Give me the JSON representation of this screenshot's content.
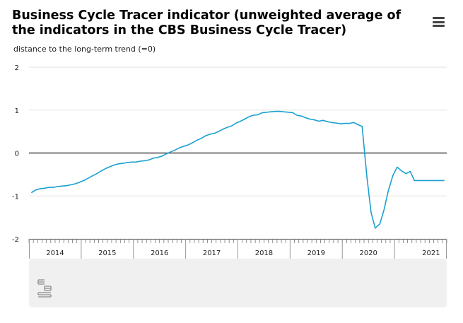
{
  "chart_data": {
    "type": "line",
    "title": "Business Cycle Tracer indicator (unweighted average of the indicators in the CBS Business Cycle Tracer)",
    "ylabel": "distance to the long-term trend (=0)",
    "xlabel": "",
    "ylim": [
      -2,
      2
    ],
    "yticks": [
      2,
      1,
      0,
      -1,
      -2
    ],
    "xlim": [
      2013.5,
      2021.5
    ],
    "year_labels": [
      {
        "label": "2014",
        "x": 2014.0
      },
      {
        "label": "2015",
        "x": 2015.0
      },
      {
        "label": "2016",
        "x": 2016.0
      },
      {
        "label": "2017",
        "x": 2017.0
      },
      {
        "label": "2018",
        "x": 2018.0
      },
      {
        "label": "2019",
        "x": 2019.0
      },
      {
        "label": "2020",
        "x": 2020.0
      },
      {
        "label": "2021",
        "x": 2021.2
      }
    ],
    "year_dividers": [
      2014.5,
      2015.5,
      2016.5,
      2017.5,
      2018.5,
      2019.5,
      2020.5
    ],
    "series": [
      {
        "name": "Business Cycle Tracer indicator",
        "color": "#1aa0d0",
        "x": [
          2013.55,
          2013.63,
          2013.72,
          2013.8,
          2013.88,
          2013.97,
          2014.05,
          2014.13,
          2014.22,
          2014.3,
          2014.38,
          2014.47,
          2014.55,
          2014.63,
          2014.72,
          2014.8,
          2014.88,
          2014.97,
          2015.05,
          2015.13,
          2015.22,
          2015.3,
          2015.38,
          2015.47,
          2015.55,
          2015.63,
          2015.72,
          2015.8,
          2015.88,
          2015.97,
          2016.05,
          2016.13,
          2016.22,
          2016.3,
          2016.38,
          2016.47,
          2016.55,
          2016.63,
          2016.72,
          2016.8,
          2016.88,
          2016.97,
          2017.05,
          2017.13,
          2017.22,
          2017.3,
          2017.38,
          2017.47,
          2017.55,
          2017.63,
          2017.72,
          2017.8,
          2017.88,
          2017.97,
          2018.05,
          2018.13,
          2018.22,
          2018.3,
          2018.38,
          2018.47,
          2018.55,
          2018.63,
          2018.72,
          2018.8,
          2018.88,
          2018.97,
          2019.05,
          2019.13,
          2019.22,
          2019.3,
          2019.38,
          2019.47,
          2019.55,
          2019.63,
          2019.72,
          2019.8,
          2019.88,
          2019.97,
          2020.05,
          2020.13,
          2020.22,
          2020.3,
          2020.38,
          2020.47,
          2020.55,
          2020.63,
          2020.72,
          2020.8,
          2020.88,
          2020.97,
          2021.05,
          2021.13,
          2021.22,
          2021.3,
          2021.38,
          2021.45
        ],
        "values": [
          -0.92,
          -0.86,
          -0.83,
          -0.82,
          -0.8,
          -0.8,
          -0.78,
          -0.77,
          -0.76,
          -0.74,
          -0.72,
          -0.68,
          -0.64,
          -0.59,
          -0.53,
          -0.48,
          -0.42,
          -0.36,
          -0.32,
          -0.28,
          -0.25,
          -0.24,
          -0.22,
          -0.21,
          -0.21,
          -0.19,
          -0.18,
          -0.16,
          -0.12,
          -0.1,
          -0.07,
          -0.02,
          0.03,
          0.07,
          0.12,
          0.16,
          0.19,
          0.24,
          0.3,
          0.34,
          0.4,
          0.44,
          0.46,
          0.5,
          0.56,
          0.6,
          0.63,
          0.7,
          0.74,
          0.79,
          0.85,
          0.88,
          0.89,
          0.94,
          0.95,
          0.96,
          0.97,
          0.97,
          0.96,
          0.95,
          0.94,
          0.88,
          0.86,
          0.82,
          0.79,
          0.77,
          0.74,
          0.76,
          0.73,
          0.71,
          0.7,
          0.68,
          0.69,
          0.69,
          0.71,
          0.66,
          0.62,
          -0.55,
          -1.38,
          -1.75,
          -1.65,
          -1.32,
          -0.88,
          -0.52,
          -0.33,
          -0.41,
          -0.48,
          -0.43,
          -0.64,
          -0.64,
          -0.64,
          -0.64,
          -0.64,
          -0.64,
          -0.64,
          -0.64
        ]
      }
    ]
  },
  "colors": {
    "line": "#1aa0d0",
    "zero_line": "#444444",
    "grid": "#e2e2e2",
    "footer": "#f0f0f0"
  },
  "logo": {
    "icon": "cbs-logo-icon"
  },
  "menu": {
    "icon": "hamburger-menu-icon"
  }
}
